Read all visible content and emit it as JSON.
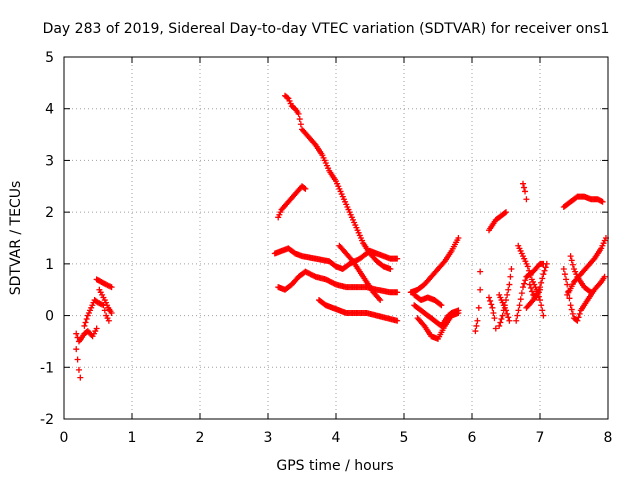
{
  "chart_data": {
    "type": "scatter",
    "title": "Day 283 of 2019, Sidereal Day-to-day VTEC variation (SDTVAR) for receiver ons1",
    "xlabel": "GPS time / hours",
    "ylabel": "SDTVAR / TECUs",
    "xlim": [
      0,
      8
    ],
    "ylim": [
      -2,
      5
    ],
    "xticks": [
      "0",
      "1",
      "2",
      "3",
      "4",
      "5",
      "6",
      "7",
      "8"
    ],
    "yticks": [
      "-2",
      "-1",
      "0",
      "1",
      "2",
      "3",
      "4",
      "5"
    ],
    "grid": true,
    "marker": "plus",
    "color": "#ff0000",
    "tracks": [
      [
        [
          0.18,
          -0.65
        ],
        [
          0.2,
          -0.85
        ],
        [
          0.22,
          -1.05
        ],
        [
          0.24,
          -1.2
        ]
      ],
      [
        [
          0.18,
          -0.35
        ],
        [
          0.22,
          -0.5
        ],
        [
          0.25,
          -0.45
        ],
        [
          0.3,
          -0.35
        ],
        [
          0.35,
          -0.3
        ],
        [
          0.42,
          -0.4
        ],
        [
          0.48,
          -0.25
        ]
      ],
      [
        [
          0.3,
          -0.2
        ],
        [
          0.35,
          0.0
        ],
        [
          0.4,
          0.15
        ],
        [
          0.45,
          0.3
        ],
        [
          0.5,
          0.25
        ],
        [
          0.58,
          0.2
        ],
        [
          0.62,
          0.0
        ],
        [
          0.66,
          -0.1
        ]
      ],
      [
        [
          0.48,
          0.7
        ],
        [
          0.55,
          0.65
        ],
        [
          0.62,
          0.6
        ],
        [
          0.7,
          0.55
        ]
      ],
      [
        [
          0.52,
          0.5
        ],
        [
          0.6,
          0.3
        ],
        [
          0.65,
          0.15
        ],
        [
          0.7,
          0.05
        ]
      ],
      [
        [
          3.15,
          1.9
        ],
        [
          3.2,
          2.05
        ],
        [
          3.3,
          2.2
        ],
        [
          3.4,
          2.35
        ],
        [
          3.5,
          2.5
        ],
        [
          3.55,
          2.45
        ]
      ],
      [
        [
          3.25,
          4.25
        ],
        [
          3.3,
          4.2
        ],
        [
          3.35,
          4.05
        ],
        [
          3.4,
          4.0
        ],
        [
          3.45,
          3.9
        ],
        [
          3.5,
          3.6
        ],
        [
          3.6,
          3.45
        ],
        [
          3.7,
          3.3
        ],
        [
          3.8,
          3.1
        ],
        [
          3.9,
          2.8
        ],
        [
          4.0,
          2.6
        ],
        [
          4.1,
          2.3
        ],
        [
          4.2,
          2.0
        ],
        [
          4.3,
          1.7
        ],
        [
          4.4,
          1.4
        ],
        [
          4.5,
          1.2
        ],
        [
          4.6,
          1.05
        ],
        [
          4.7,
          0.95
        ],
        [
          4.8,
          0.9
        ]
      ],
      [
        [
          3.1,
          1.2
        ],
        [
          3.2,
          1.25
        ],
        [
          3.3,
          1.3
        ],
        [
          3.4,
          1.2
        ],
        [
          3.5,
          1.15
        ],
        [
          3.7,
          1.1
        ],
        [
          3.9,
          1.05
        ],
        [
          4.0,
          0.95
        ],
        [
          4.1,
          0.9
        ],
        [
          4.2,
          1.0
        ],
        [
          4.35,
          1.1
        ],
        [
          4.5,
          1.25
        ],
        [
          4.6,
          1.2
        ],
        [
          4.8,
          1.1
        ],
        [
          4.9,
          1.1
        ]
      ],
      [
        [
          3.15,
          0.55
        ],
        [
          3.25,
          0.5
        ],
        [
          3.35,
          0.6
        ],
        [
          3.45,
          0.75
        ],
        [
          3.55,
          0.85
        ],
        [
          3.7,
          0.75
        ],
        [
          3.85,
          0.7
        ],
        [
          4.0,
          0.6
        ],
        [
          4.15,
          0.55
        ],
        [
          4.3,
          0.55
        ],
        [
          4.45,
          0.55
        ],
        [
          4.6,
          0.5
        ],
        [
          4.8,
          0.45
        ],
        [
          4.9,
          0.45
        ]
      ],
      [
        [
          3.75,
          0.3
        ],
        [
          3.85,
          0.2
        ],
        [
          3.95,
          0.15
        ],
        [
          4.05,
          0.1
        ],
        [
          4.15,
          0.05
        ],
        [
          4.3,
          0.05
        ],
        [
          4.45,
          0.05
        ],
        [
          4.6,
          0.0
        ],
        [
          4.75,
          -0.05
        ],
        [
          4.9,
          -0.1
        ]
      ],
      [
        [
          4.05,
          1.35
        ],
        [
          4.15,
          1.2
        ],
        [
          4.25,
          1.05
        ],
        [
          4.35,
          0.85
        ],
        [
          4.45,
          0.65
        ],
        [
          4.55,
          0.45
        ],
        [
          4.65,
          0.3
        ]
      ],
      [
        [
          5.1,
          0.45
        ],
        [
          5.2,
          0.5
        ],
        [
          5.3,
          0.6
        ],
        [
          5.4,
          0.75
        ],
        [
          5.5,
          0.9
        ],
        [
          5.6,
          1.05
        ],
        [
          5.7,
          1.25
        ],
        [
          5.8,
          1.5
        ]
      ],
      [
        [
          5.15,
          0.2
        ],
        [
          5.25,
          0.1
        ],
        [
          5.35,
          0.0
        ],
        [
          5.45,
          -0.1
        ],
        [
          5.55,
          -0.2
        ],
        [
          5.65,
          0.0
        ],
        [
          5.7,
          0.05
        ],
        [
          5.8,
          0.1
        ]
      ],
      [
        [
          5.2,
          -0.05
        ],
        [
          5.3,
          -0.2
        ],
        [
          5.4,
          -0.4
        ],
        [
          5.5,
          -0.45
        ],
        [
          5.6,
          -0.2
        ],
        [
          5.7,
          0.0
        ],
        [
          5.8,
          0.05
        ]
      ],
      [
        [
          5.15,
          0.4
        ],
        [
          5.25,
          0.3
        ],
        [
          5.35,
          0.35
        ],
        [
          5.45,
          0.3
        ],
        [
          5.55,
          0.2
        ]
      ],
      [
        [
          6.05,
          -0.3
        ],
        [
          6.08,
          -0.1
        ],
        [
          6.1,
          0.15
        ],
        [
          6.12,
          0.5
        ],
        [
          6.12,
          0.85
        ]
      ],
      [
        [
          6.25,
          0.35
        ],
        [
          6.3,
          0.15
        ],
        [
          6.33,
          -0.05
        ],
        [
          6.35,
          -0.25
        ]
      ],
      [
        [
          6.25,
          1.65
        ],
        [
          6.35,
          1.85
        ],
        [
          6.45,
          1.95
        ],
        [
          6.5,
          2.0
        ]
      ],
      [
        [
          6.4,
          -0.2
        ],
        [
          6.45,
          0.0
        ],
        [
          6.5,
          0.3
        ],
        [
          6.55,
          0.6
        ],
        [
          6.58,
          0.9
        ]
      ],
      [
        [
          6.4,
          0.4
        ],
        [
          6.45,
          0.25
        ],
        [
          6.5,
          0.1
        ],
        [
          6.55,
          -0.1
        ]
      ],
      [
        [
          6.75,
          2.55
        ],
        [
          6.78,
          2.4
        ],
        [
          6.8,
          2.25
        ]
      ],
      [
        [
          6.65,
          -0.1
        ],
        [
          6.7,
          0.2
        ],
        [
          6.75,
          0.55
        ],
        [
          6.8,
          0.75
        ],
        [
          6.9,
          0.85
        ],
        [
          7.0,
          1.0
        ],
        [
          7.05,
          1.0
        ]
      ],
      [
        [
          6.68,
          1.35
        ],
        [
          6.75,
          1.15
        ],
        [
          6.82,
          0.95
        ],
        [
          6.88,
          0.7
        ],
        [
          6.95,
          0.5
        ],
        [
          7.0,
          0.3
        ],
        [
          7.05,
          0.0
        ]
      ],
      [
        [
          6.8,
          0.15
        ],
        [
          6.9,
          0.3
        ],
        [
          7.0,
          0.55
        ],
        [
          7.05,
          0.8
        ],
        [
          7.1,
          1.0
        ]
      ],
      [
        [
          6.85,
          0.6
        ],
        [
          6.9,
          0.4
        ],
        [
          6.95,
          0.35
        ],
        [
          7.0,
          0.5
        ]
      ],
      [
        [
          7.35,
          2.1
        ],
        [
          7.45,
          2.2
        ],
        [
          7.55,
          2.3
        ],
        [
          7.65,
          2.3
        ],
        [
          7.75,
          2.25
        ],
        [
          7.85,
          2.25
        ],
        [
          7.92,
          2.2
        ]
      ],
      [
        [
          7.35,
          0.9
        ],
        [
          7.4,
          0.6
        ],
        [
          7.45,
          0.2
        ],
        [
          7.5,
          -0.05
        ],
        [
          7.55,
          -0.1
        ],
        [
          7.6,
          0.1
        ],
        [
          7.7,
          0.3
        ],
        [
          7.8,
          0.5
        ],
        [
          7.9,
          0.65
        ],
        [
          7.95,
          0.75
        ]
      ],
      [
        [
          7.4,
          0.4
        ],
        [
          7.5,
          0.65
        ],
        [
          7.6,
          0.8
        ],
        [
          7.7,
          0.95
        ],
        [
          7.8,
          1.1
        ],
        [
          7.9,
          1.3
        ],
        [
          7.97,
          1.5
        ]
      ],
      [
        [
          7.45,
          1.15
        ],
        [
          7.5,
          0.9
        ],
        [
          7.55,
          0.75
        ],
        [
          7.65,
          0.55
        ],
        [
          7.75,
          0.45
        ]
      ]
    ]
  }
}
